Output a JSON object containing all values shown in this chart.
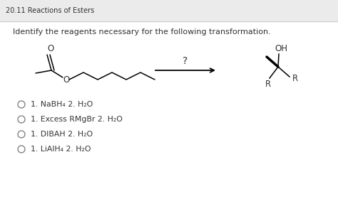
{
  "title": "20.11 Reactions of Esters",
  "question": "Identify the reagents necessary for the following transformation.",
  "options": [
    "1. NaBH₄ 2. H₂O",
    "1. Excess RMgBr 2. H₂O",
    "1. DIBAH 2. H₂O",
    "1. LiAlH₄ 2. H₂O"
  ],
  "title_bg": "#ebebeb",
  "panel_color": "#ffffff",
  "text_color": "#333333",
  "sep_color": "#cccccc"
}
